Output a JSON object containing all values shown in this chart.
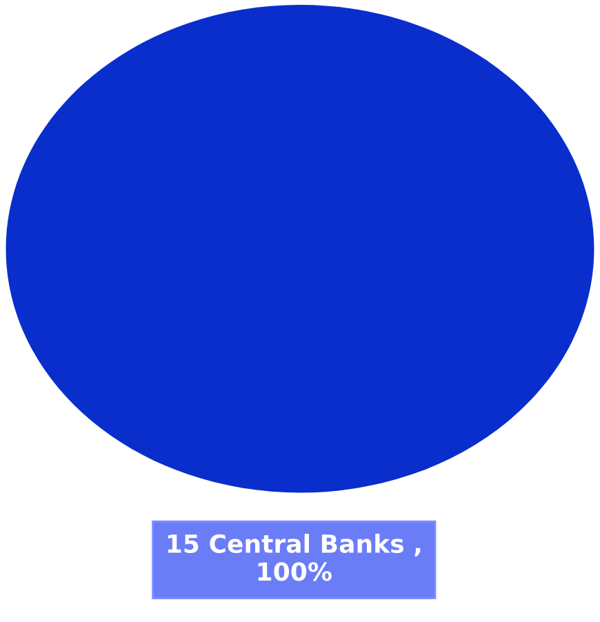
{
  "chart_data": {
    "type": "pie",
    "categories": [
      "15 Central Banks"
    ],
    "values": [
      100
    ],
    "colors": [
      "#0a2ecc"
    ],
    "value_labels": [
      ", 100%"
    ]
  }
}
